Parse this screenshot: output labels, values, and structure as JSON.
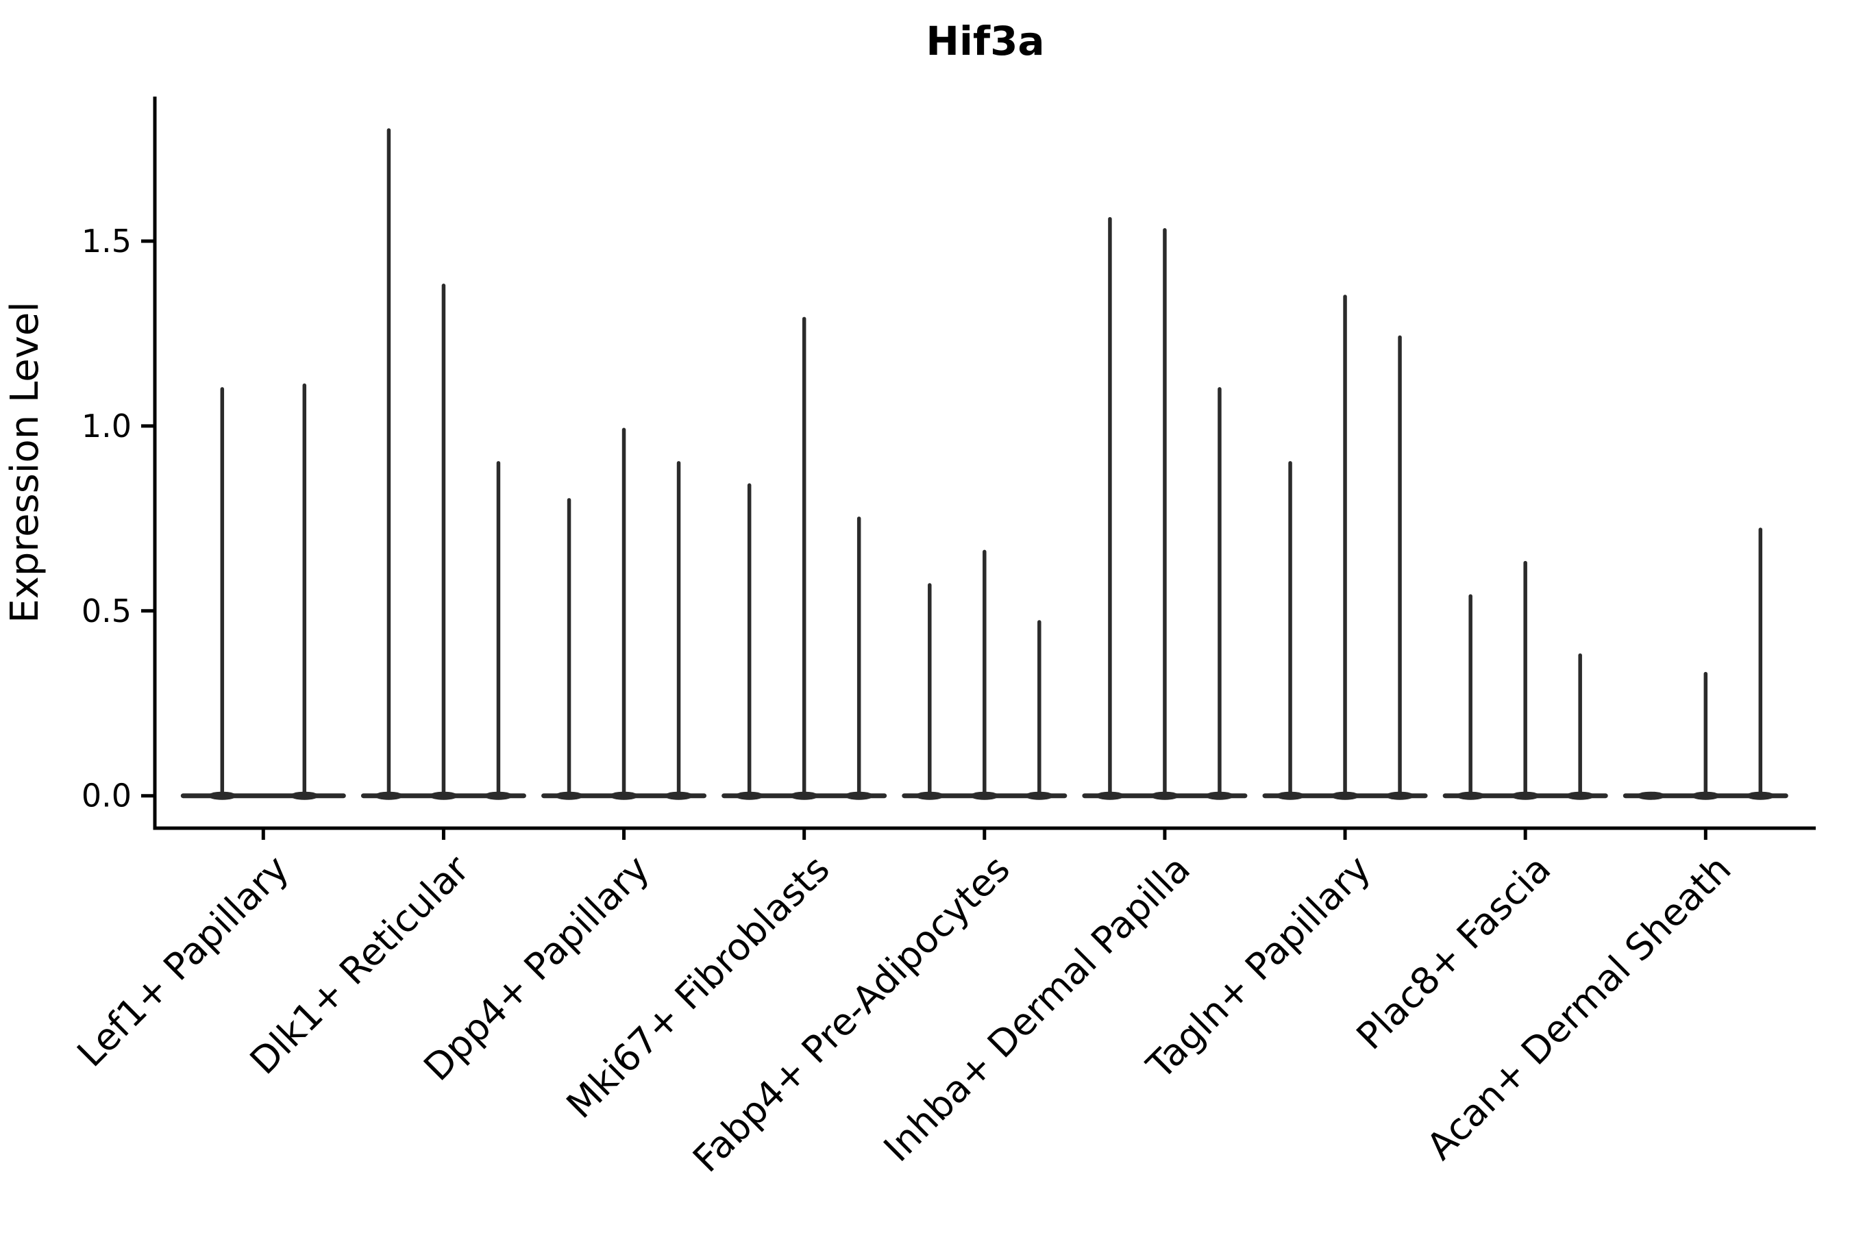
{
  "title": "Hif3a",
  "axes": {
    "y_label": "Expression Level",
    "y_tick_labels": [
      "0.0",
      "0.5",
      "1.0",
      "1.5"
    ],
    "x_label": ""
  },
  "colors": {
    "violin": "#2b2b2b",
    "axis": "#000000",
    "text": "#000000",
    "background": "#ffffff"
  },
  "chart_data": {
    "type": "violin",
    "title": "Hif3a",
    "xlabel": "",
    "ylabel": "Expression Level",
    "ylim": [
      -0.09,
      1.89
    ],
    "yticks": [
      0.0,
      0.5,
      1.0,
      1.5
    ],
    "grid": false,
    "legend": "none",
    "style": "collapsed spike violins on a flat zero baseline, one group of violins per category",
    "categories": [
      "Lef1+ Papillary",
      "Dlk1+ Reticular",
      "Dpp4+ Papillary",
      "Mki67+ Fibroblasts",
      "Fabp4+ Pre-Adipocytes",
      "Inhba+ Dermal Papilla",
      "Tagln+ Papillary",
      "Plac8+ Fascia",
      "Acan+ Dermal Sheath"
    ],
    "series": [
      {
        "category": "Lef1+ Papillary",
        "violin_maxima": [
          1.1,
          1.11
        ]
      },
      {
        "category": "Dlk1+ Reticular",
        "violin_maxima": [
          1.8,
          1.38,
          0.9
        ]
      },
      {
        "category": "Dpp4+ Papillary",
        "violin_maxima": [
          0.8,
          0.99,
          0.9
        ]
      },
      {
        "category": "Mki67+ Fibroblasts",
        "violin_maxima": [
          0.84,
          1.29,
          0.75
        ]
      },
      {
        "category": "Fabp4+ Pre-Adipocytes",
        "violin_maxima": [
          0.57,
          0.66,
          0.47
        ]
      },
      {
        "category": "Inhba+ Dermal Papilla",
        "violin_maxima": [
          1.56,
          1.53,
          1.1
        ]
      },
      {
        "category": "Tagln+ Papillary",
        "violin_maxima": [
          0.9,
          1.35,
          1.24
        ]
      },
      {
        "category": "Plac8+ Fascia",
        "violin_maxima": [
          0.54,
          0.63,
          0.38
        ]
      },
      {
        "category": "Acan+ Dermal Sheath",
        "violin_maxima": [
          0.0,
          0.33,
          0.72
        ]
      }
    ]
  }
}
